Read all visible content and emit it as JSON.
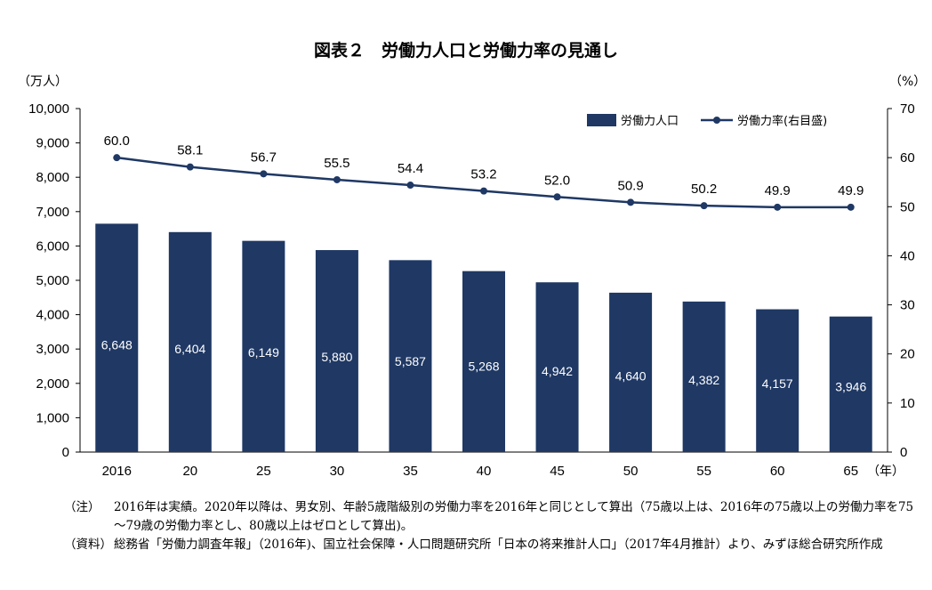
{
  "chart_data": {
    "type": "bar",
    "title": "図表２　労働力人口と労働力率の見通し",
    "categories": [
      "2016",
      "20",
      "25",
      "30",
      "35",
      "40",
      "45",
      "50",
      "55",
      "60",
      "65"
    ],
    "x_unit": "（年）",
    "y_left_unit": "（万人）",
    "y_right_unit": "（%）",
    "y_left_ticks": [
      "0",
      "1,000",
      "2,000",
      "3,000",
      "4,000",
      "5,000",
      "6,000",
      "7,000",
      "8,000",
      "9,000",
      "10,000"
    ],
    "y_right_ticks": [
      "0",
      "10",
      "20",
      "30",
      "40",
      "50",
      "60",
      "70"
    ],
    "ylim_left": [
      0,
      10000
    ],
    "ylim_right": [
      0,
      70
    ],
    "legend_position": "top-right",
    "series": [
      {
        "name": "労働力人口",
        "type": "bar",
        "axis": "left",
        "color": "#1f3864",
        "values": [
          6648,
          6404,
          6149,
          5880,
          5587,
          5268,
          4942,
          4640,
          4382,
          4157,
          3946
        ],
        "labels": [
          "6,648",
          "6,404",
          "6,149",
          "5,880",
          "5,587",
          "5,268",
          "4,942",
          "4,640",
          "4,382",
          "4,157",
          "3,946"
        ]
      },
      {
        "name": "労働力率(右目盛)",
        "type": "line",
        "axis": "right",
        "color": "#1f3864",
        "values": [
          60.0,
          58.1,
          56.7,
          55.5,
          54.4,
          53.2,
          52.0,
          50.9,
          50.2,
          49.9,
          49.9
        ],
        "labels": [
          "60.0",
          "58.1",
          "56.7",
          "55.5",
          "54.4",
          "53.2",
          "52.0",
          "50.9",
          "50.2",
          "49.9",
          "49.9"
        ]
      }
    ]
  },
  "notes": {
    "note_tag": "（注）",
    "note_text": "2016年は実績。2020年以降は、男女別、年齢5歳階級別の労働力率を2016年と同じとして算出（75歳以上は、2016年の75歳以上の労働力率を75～79歳の労働力率とし、80歳以上はゼロとして算出)。",
    "source_tag": "（資料）",
    "source_text": "総務省「労働力調査年報」（2016年)、国立社会保障・人口問題研究所「日本の将来推計人口」（2017年4月推計）より、みずほ総合研究所作成"
  }
}
